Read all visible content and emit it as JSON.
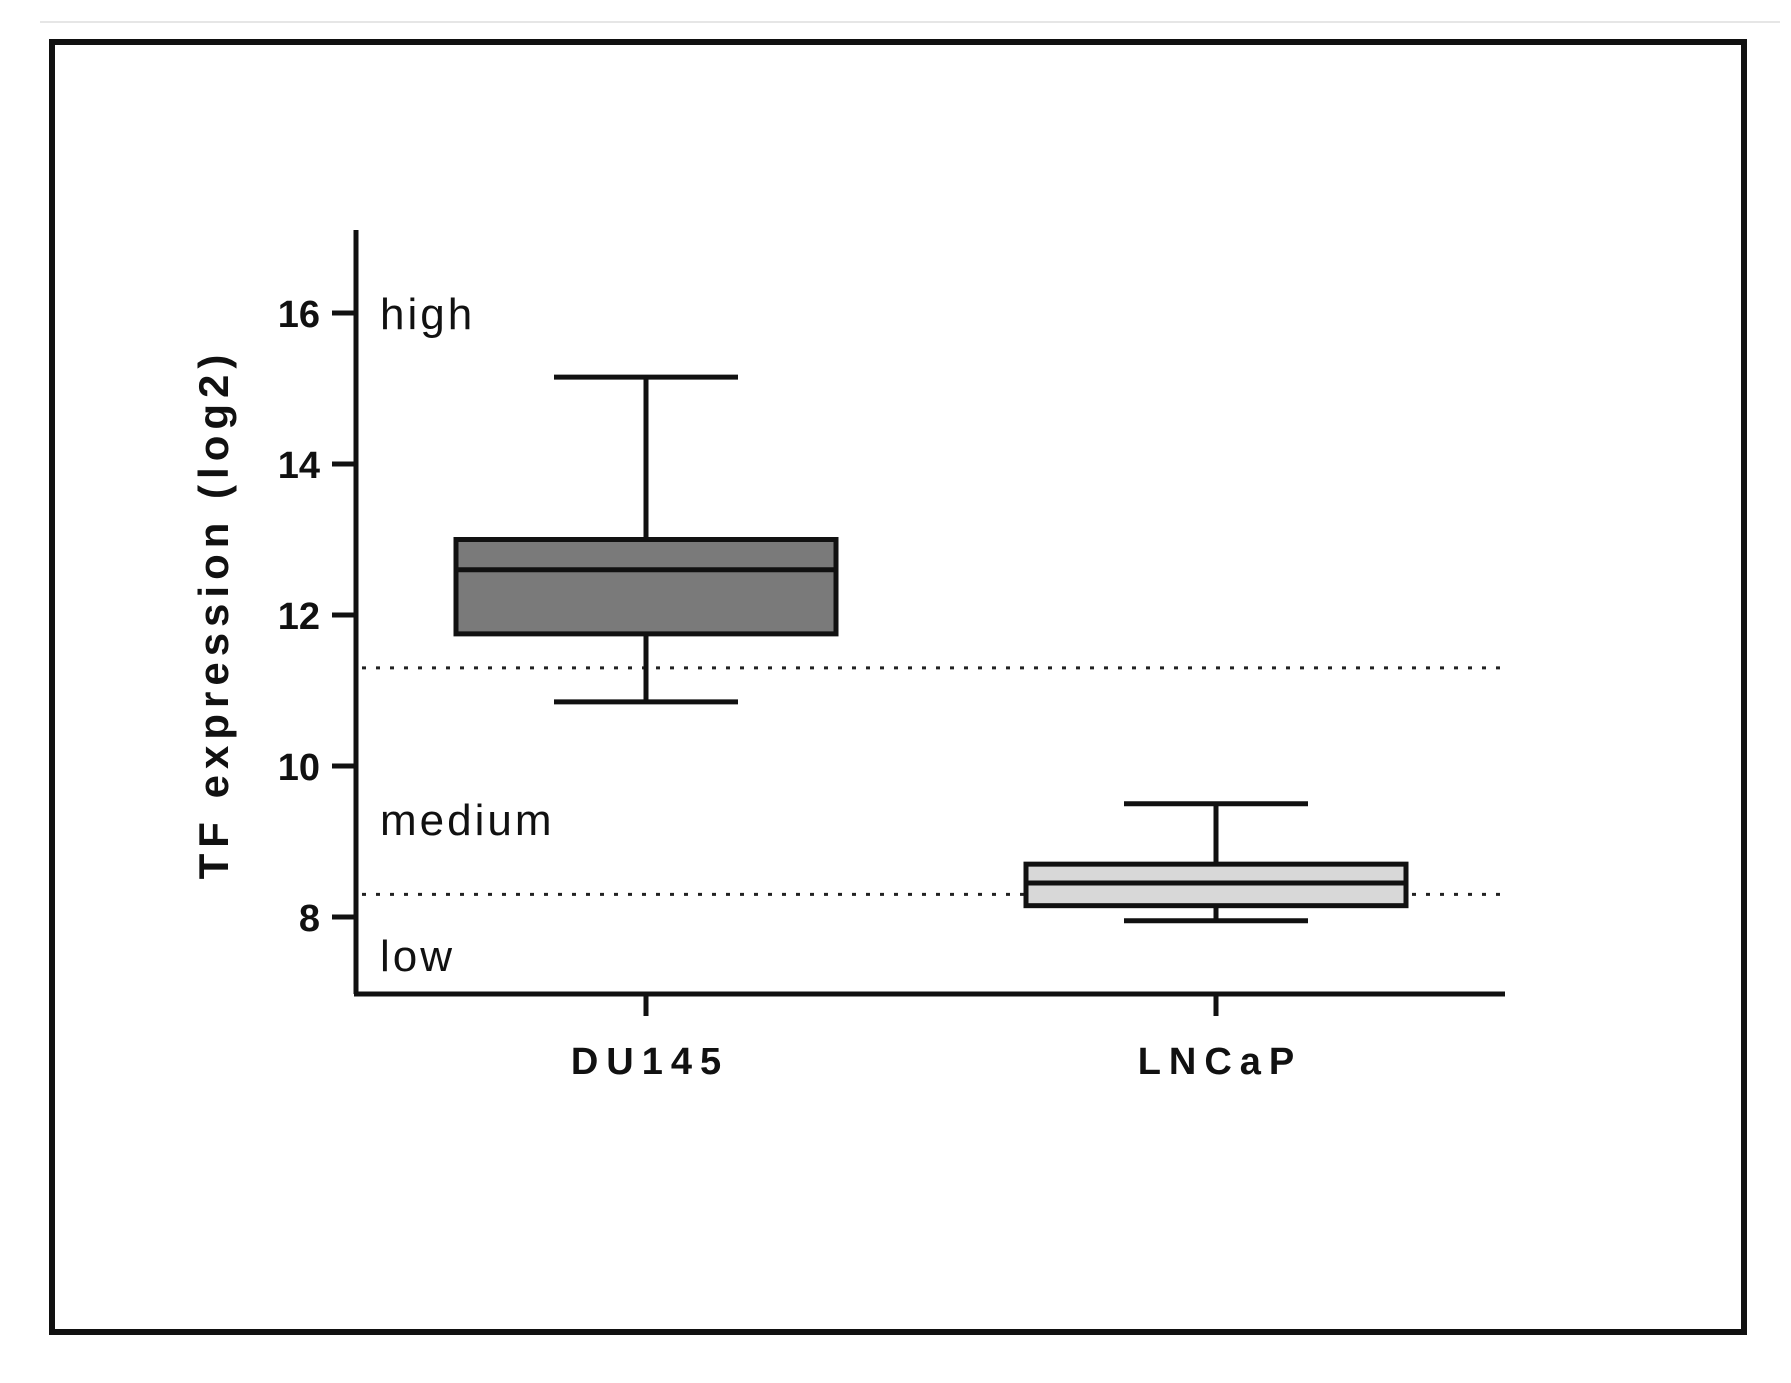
{
  "chart_data": {
    "type": "box",
    "ylabel": "TF expression (log2)",
    "xlabel": "",
    "ylim": [
      7,
      17
    ],
    "yticks": [
      8,
      10,
      12,
      14,
      16
    ],
    "categories": [
      "DU145",
      "LNCaP"
    ],
    "boxes": [
      {
        "category": "DU145",
        "min": 10.85,
        "q1": 11.75,
        "median": 12.6,
        "q3": 13.0,
        "max": 15.15,
        "color": "#7a7a7a"
      },
      {
        "category": "LNCaP",
        "min": 7.95,
        "q1": 8.15,
        "median": 8.45,
        "q3": 8.7,
        "max": 9.5,
        "color": "#d8d8d8"
      }
    ],
    "thresholds": [
      11.3,
      8.3
    ],
    "region_labels": [
      {
        "text": "high",
        "y": 16.0
      },
      {
        "text": "medium",
        "y": 9.3
      },
      {
        "text": "low",
        "y": 7.5
      }
    ],
    "grid": false,
    "legend": "none"
  }
}
